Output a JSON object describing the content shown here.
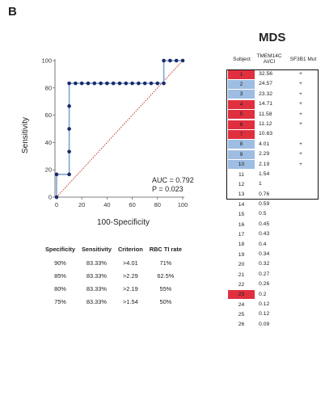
{
  "panel_label": "B",
  "mds_title": "MDS",
  "colors": {
    "red": "#e03040",
    "blue": "#9dbde3",
    "navy": "#1b2a6b",
    "line_blue": "#7fa6d6",
    "diag": "#c0392b"
  },
  "chart_data": {
    "type": "line",
    "title": "",
    "xlabel": "100-Specificity",
    "ylabel": "Sensitivity",
    "xlim": [
      0,
      100
    ],
    "ylim": [
      0,
      100
    ],
    "xticks": [
      "0",
      "20",
      "40",
      "60",
      "80",
      "100"
    ],
    "yticks": [
      "0",
      "20",
      "40",
      "60",
      "80",
      "100"
    ],
    "series": [
      {
        "x": [
          0,
          0,
          10,
          10,
          10,
          10,
          10,
          15,
          20,
          25,
          30,
          35,
          40,
          45,
          50,
          55,
          60,
          65,
          70,
          75,
          80,
          85,
          85,
          90,
          95,
          100
        ],
        "y": [
          0,
          16.67,
          16.67,
          33.33,
          50,
          66.67,
          83.33,
          83.33,
          83.33,
          83.33,
          83.33,
          83.33,
          83.33,
          83.33,
          83.33,
          83.33,
          83.33,
          83.33,
          83.33,
          83.33,
          83.33,
          83.33,
          100,
          100,
          100,
          100
        ]
      }
    ],
    "reference_line": {
      "x": [
        0,
        100
      ],
      "y": [
        0,
        100
      ],
      "style": "dotted"
    },
    "annotations": [
      "AUC = 0.792",
      "P = 0.023"
    ]
  },
  "criterion_table": {
    "headers": [
      "Specificity",
      "Sensitivity",
      "Criterion",
      "RBC TI rate"
    ],
    "rows": [
      [
        "90%",
        "83.33%",
        ">4.01",
        "71%"
      ],
      [
        "85%",
        "83.33%",
        ">2.29",
        "62.5%"
      ],
      [
        "80%",
        "83.33%",
        ">2.19",
        "55%"
      ],
      [
        "75%",
        "83.33%",
        ">1.54",
        "50%"
      ]
    ]
  },
  "subject_table": {
    "headers": {
      "subject": "Subject",
      "tmem": "TMEM14C\nAI/CI",
      "mut": "SF3B1 Mut"
    },
    "rows": [
      {
        "id": "1",
        "value": "32.56",
        "mut": "+",
        "highlight": "red"
      },
      {
        "id": "2",
        "value": "24.57",
        "mut": "+",
        "highlight": "blue"
      },
      {
        "id": "3",
        "value": "23.32",
        "mut": "+",
        "highlight": "blue"
      },
      {
        "id": "4",
        "value": "14.71",
        "mut": "+",
        "highlight": "red"
      },
      {
        "id": "5",
        "value": "11.58",
        "mut": "+",
        "highlight": "red"
      },
      {
        "id": "6",
        "value": "11.12",
        "mut": "+",
        "highlight": "red"
      },
      {
        "id": "7",
        "value": "10.63",
        "mut": "",
        "highlight": "red"
      },
      {
        "id": "8",
        "value": "4.01",
        "mut": "+",
        "highlight": "blue"
      },
      {
        "id": "9",
        "value": "2.29",
        "mut": "+",
        "highlight": "blue"
      },
      {
        "id": "10",
        "value": "2.19",
        "mut": "+",
        "highlight": "blue"
      },
      {
        "id": "11",
        "value": "1.54",
        "mut": "",
        "highlight": ""
      },
      {
        "id": "12",
        "value": "1",
        "mut": "",
        "highlight": ""
      },
      {
        "id": "13",
        "value": "0.76",
        "mut": "",
        "highlight": ""
      },
      {
        "id": "14",
        "value": "0.59",
        "mut": "",
        "highlight": ""
      },
      {
        "id": "15",
        "value": "0.5",
        "mut": "",
        "highlight": ""
      },
      {
        "id": "16",
        "value": "0.45",
        "mut": "",
        "highlight": ""
      },
      {
        "id": "17",
        "value": "0.43",
        "mut": "",
        "highlight": ""
      },
      {
        "id": "18",
        "value": "0.4",
        "mut": "",
        "highlight": ""
      },
      {
        "id": "19",
        "value": "0.34",
        "mut": "",
        "highlight": ""
      },
      {
        "id": "20",
        "value": "0.32",
        "mut": "",
        "highlight": ""
      },
      {
        "id": "21",
        "value": "0.27",
        "mut": "",
        "highlight": ""
      },
      {
        "id": "22",
        "value": "0.26",
        "mut": "",
        "highlight": ""
      },
      {
        "id": "23",
        "value": "0.2",
        "mut": "",
        "highlight": "red"
      },
      {
        "id": "24",
        "value": "0.12",
        "mut": "",
        "highlight": ""
      },
      {
        "id": "25",
        "value": "0.12",
        "mut": "",
        "highlight": ""
      },
      {
        "id": "26",
        "value": "0.09",
        "mut": "",
        "highlight": ""
      }
    ]
  }
}
